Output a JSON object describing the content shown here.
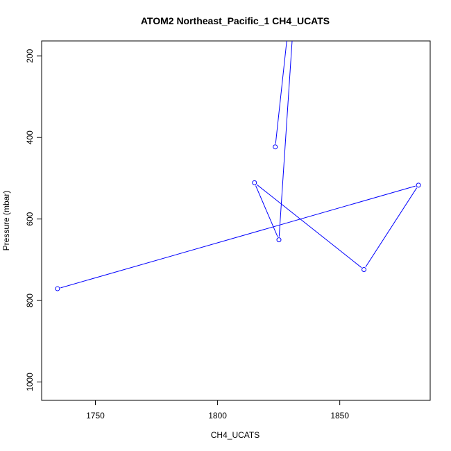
{
  "chart_data": {
    "type": "line",
    "title": "ATOM2 Northeast_Pacific_1 CH4_UCATS",
    "xlabel": "CH4_UCATS",
    "ylabel": "Pressure (mbar)",
    "xlim": [
      1728,
      1887
    ],
    "ylim": [
      1045,
      163
    ],
    "y_inverted": true,
    "x_ticks": [
      1750,
      1800,
      1850
    ],
    "y_ticks": [
      200,
      400,
      600,
      800,
      1000
    ],
    "grid": false,
    "series": [
      {
        "color": "#0000ff",
        "marker": "open-circle",
        "points": [
          {
            "x": 1734.5,
            "y": 771,
            "marker": true
          },
          {
            "x": 1882.2,
            "y": 517,
            "marker": true
          },
          {
            "x": 1859.9,
            "y": 724,
            "marker": true
          },
          {
            "x": 1815.1,
            "y": 511,
            "marker": true
          },
          {
            "x": 1825.1,
            "y": 651,
            "marker": true
          },
          {
            "x": 1830.5,
            "y": 163,
            "marker": false
          }
        ]
      },
      {
        "color": "#0000ff",
        "marker": "open-circle",
        "points": [
          {
            "x": 1823.6,
            "y": 423,
            "marker": true
          },
          {
            "x": 1828.3,
            "y": 163,
            "marker": false
          }
        ]
      }
    ]
  }
}
